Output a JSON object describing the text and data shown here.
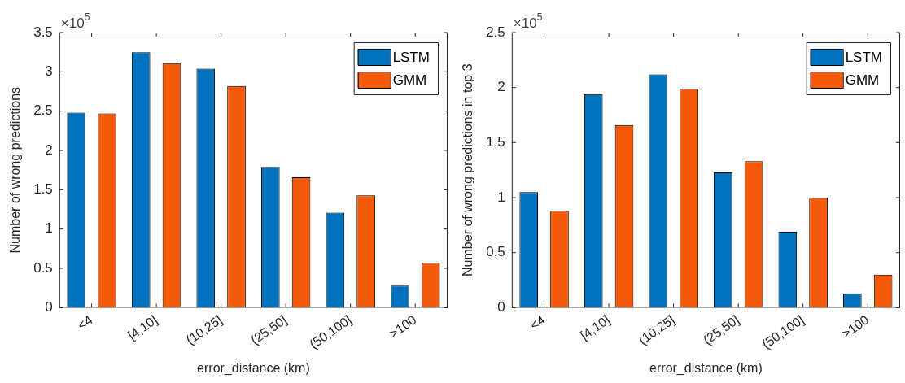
{
  "chart_data": [
    {
      "type": "bar",
      "xlabel": "error_distance (km)",
      "ylabel": "Number of wrong predictions",
      "categories": [
        "<4",
        "[4,10]",
        "(10,25]",
        "(25,50]",
        "(50,100]",
        ">100"
      ],
      "series": [
        {
          "name": "LSTM",
          "color": "#0072bd",
          "values": [
            2.48,
            3.25,
            3.04,
            1.79,
            1.21,
            0.28
          ]
        },
        {
          "name": "GMM",
          "color": "#f55a0a",
          "values": [
            2.47,
            3.11,
            2.82,
            1.66,
            1.43,
            0.57
          ]
        }
      ],
      "ylim": [
        0,
        3.5
      ],
      "yticks": [
        0,
        0.5,
        1,
        1.5,
        2,
        2.5,
        3,
        3.5
      ],
      "legend": "top right",
      "annotations": [
        "×10$^{5}$"
      ]
    },
    {
      "type": "bar",
      "xlabel": "error_distance (km)",
      "ylabel": "Number of wrong predictions in top 3",
      "categories": [
        "<4",
        "[4,10]",
        "(10,25]",
        "(25,50]",
        "(50,100]",
        ">100"
      ],
      "series": [
        {
          "name": "LSTM",
          "color": "#0072bd",
          "values": [
            1.05,
            1.94,
            2.12,
            1.23,
            0.69,
            0.13
          ]
        },
        {
          "name": "GMM",
          "color": "#f55a0a",
          "values": [
            0.88,
            1.66,
            1.99,
            1.33,
            1.0,
            0.3
          ]
        }
      ],
      "ylim": [
        0,
        2.5
      ],
      "yticks": [
        0,
        0.5,
        1,
        1.5,
        2,
        2.5
      ],
      "legend": "top right",
      "annotations": [
        "×10$^{5}$"
      ]
    }
  ]
}
